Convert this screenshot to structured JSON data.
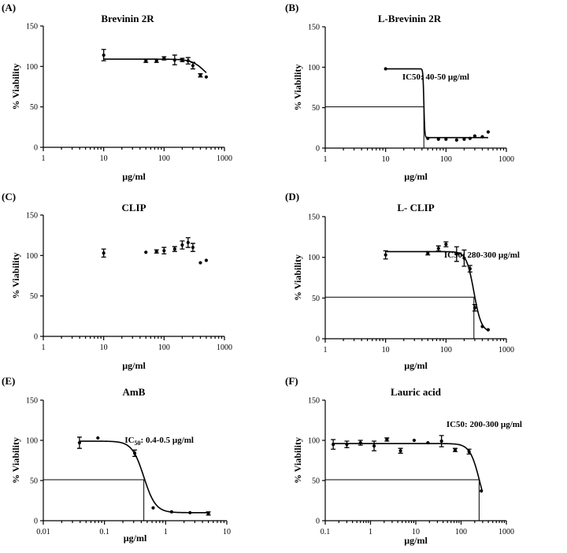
{
  "chart_data": [
    {
      "type": "scatter",
      "panel": "(A)",
      "title": "Brevinin 2R",
      "xlabel": "µg/ml",
      "ylabel": "% Viability",
      "xscale": "log",
      "xlim": [
        1,
        1000
      ],
      "ylim": [
        0,
        150
      ],
      "xticks": [
        1,
        10,
        100,
        1000
      ],
      "xtick_labels": [
        "1",
        "10",
        "100",
        "1000"
      ],
      "yticks": [
        0,
        50,
        100,
        150
      ],
      "points": [
        {
          "x": 10,
          "y": 114,
          "err": 7
        },
        {
          "x": 50,
          "y": 107,
          "err": 2
        },
        {
          "x": 75,
          "y": 107,
          "err": 2
        },
        {
          "x": 100,
          "y": 110,
          "err": 2
        },
        {
          "x": 150,
          "y": 108,
          "err": 6
        },
        {
          "x": 200,
          "y": 108,
          "err": 2
        },
        {
          "x": 250,
          "y": 107,
          "err": 4
        },
        {
          "x": 300,
          "y": 101,
          "err": 4
        },
        {
          "x": 400,
          "y": 89,
          "err": 2
        },
        {
          "x": 500,
          "y": 87,
          "err": 0
        }
      ],
      "curve": {
        "top": 109,
        "bottom": 78,
        "ic50": 480,
        "hill": 4
      },
      "annotation": ""
    },
    {
      "type": "scatter",
      "panel": "(B)",
      "title": "L-Brevinin 2R",
      "xlabel": "µg/ml",
      "ylabel": "% Viability",
      "xscale": "log",
      "xlim": [
        1,
        1000
      ],
      "ylim": [
        0,
        150
      ],
      "xticks": [
        1,
        10,
        100,
        1000
      ],
      "xtick_labels": [
        "1",
        "10",
        "100",
        "1000"
      ],
      "yticks": [
        0,
        50,
        100,
        150
      ],
      "points": [
        {
          "x": 10,
          "y": 98,
          "err": 0
        },
        {
          "x": 50,
          "y": 12,
          "err": 0
        },
        {
          "x": 75,
          "y": 11,
          "err": 0
        },
        {
          "x": 100,
          "y": 11,
          "err": 0
        },
        {
          "x": 150,
          "y": 10,
          "err": 0
        },
        {
          "x": 200,
          "y": 11,
          "err": 0
        },
        {
          "x": 250,
          "y": 12,
          "err": 0
        },
        {
          "x": 300,
          "y": 15,
          "err": 0
        },
        {
          "x": 400,
          "y": 14,
          "err": 0
        },
        {
          "x": 500,
          "y": 20,
          "err": 0
        }
      ],
      "curve": {
        "top": 98,
        "bottom": 13,
        "ic50": 43,
        "hill": 60
      },
      "guide": {
        "x": 43,
        "y": 51
      },
      "annotation": "IC50: 40-50 µg/ml"
    },
    {
      "type": "scatter",
      "panel": "(C)",
      "title": "CLIP",
      "xlabel": "µg/ml",
      "ylabel": "% Viability",
      "xscale": "log",
      "xlim": [
        1,
        1000
      ],
      "ylim": [
        0,
        150
      ],
      "xticks": [
        1,
        10,
        100,
        1000
      ],
      "xtick_labels": [
        "1",
        "10",
        "100",
        "1000"
      ],
      "yticks": [
        0,
        50,
        100,
        150
      ],
      "points": [
        {
          "x": 10,
          "y": 103,
          "err": 5
        },
        {
          "x": 50,
          "y": 104,
          "err": 0
        },
        {
          "x": 75,
          "y": 105,
          "err": 2
        },
        {
          "x": 100,
          "y": 106,
          "err": 4
        },
        {
          "x": 150,
          "y": 108,
          "err": 3
        },
        {
          "x": 200,
          "y": 113,
          "err": 5
        },
        {
          "x": 250,
          "y": 116,
          "err": 6
        },
        {
          "x": 300,
          "y": 110,
          "err": 5
        },
        {
          "x": 400,
          "y": 91,
          "err": 0
        },
        {
          "x": 500,
          "y": 94,
          "err": 0
        }
      ],
      "annotation": ""
    },
    {
      "type": "scatter",
      "panel": "(D)",
      "title": "L- CLIP",
      "xlabel": "µg/ml",
      "ylabel": "% Viability",
      "xscale": "log",
      "xlim": [
        1,
        1000
      ],
      "ylim": [
        0,
        150
      ],
      "xticks": [
        1,
        10,
        100,
        1000
      ],
      "xtick_labels": [
        "1",
        "10",
        "100",
        "1000"
      ],
      "yticks": [
        0,
        50,
        100,
        150
      ],
      "points": [
        {
          "x": 10,
          "y": 103,
          "err": 5
        },
        {
          "x": 50,
          "y": 105,
          "err": 2
        },
        {
          "x": 75,
          "y": 111,
          "err": 3
        },
        {
          "x": 100,
          "y": 116,
          "err": 3
        },
        {
          "x": 150,
          "y": 104,
          "err": 9
        },
        {
          "x": 200,
          "y": 99,
          "err": 10
        },
        {
          "x": 250,
          "y": 86,
          "err": 4
        },
        {
          "x": 300,
          "y": 38,
          "err": 4
        },
        {
          "x": 400,
          "y": 15,
          "err": 0
        },
        {
          "x": 500,
          "y": 11,
          "err": 0
        }
      ],
      "curve": {
        "top": 107,
        "bottom": 8,
        "ic50": 290,
        "hill": 7
      },
      "guide": {
        "x": 290,
        "y": 51
      },
      "annotation": "IC50: 280-300 µg/ml"
    },
    {
      "type": "scatter",
      "panel": "(E)",
      "title": "AmB",
      "xlabel": "µg/ml",
      "ylabel": "% Viability",
      "xscale": "log",
      "xlim": [
        0.01,
        10
      ],
      "ylim": [
        0,
        150
      ],
      "xticks": [
        0.01,
        0.1,
        1,
        10
      ],
      "xtick_labels": [
        "0.01",
        "0.1",
        "1",
        "10"
      ],
      "yticks": [
        0,
        50,
        100,
        150
      ],
      "points": [
        {
          "x": 0.039,
          "y": 97,
          "err": 7
        },
        {
          "x": 0.078,
          "y": 103,
          "err": 0
        },
        {
          "x": 0.312,
          "y": 84,
          "err": 4
        },
        {
          "x": 0.625,
          "y": 16,
          "err": 0
        },
        {
          "x": 1.25,
          "y": 11,
          "err": 0
        },
        {
          "x": 2.5,
          "y": 10,
          "err": 0
        },
        {
          "x": 5,
          "y": 9,
          "err": 2
        }
      ],
      "curve": {
        "top": 99,
        "bottom": 10,
        "ic50": 0.44,
        "hill": 4.5
      },
      "guide": {
        "x": 0.44,
        "y": 51
      },
      "annotation_main": "IC",
      "annotation_sub": "50",
      "annotation_rest": ": 0.4-0.5 µg/ml"
    },
    {
      "type": "scatter",
      "panel": "(F)",
      "title": "Lauric acid",
      "xlabel": "µg/ml",
      "ylabel": "% Viability",
      "xscale": "log",
      "xlim": [
        0.1,
        1000
      ],
      "ylim": [
        0,
        150
      ],
      "xticks": [
        0.1,
        1,
        10,
        100,
        1000
      ],
      "xtick_labels": [
        "0.1",
        "1",
        "10",
        "100",
        "1000"
      ],
      "yticks": [
        0,
        50,
        100,
        150
      ],
      "points": [
        {
          "x": 0.15,
          "y": 95,
          "err": 6
        },
        {
          "x": 0.3,
          "y": 95,
          "err": 4
        },
        {
          "x": 0.6,
          "y": 97,
          "err": 3
        },
        {
          "x": 1.2,
          "y": 93,
          "err": 6
        },
        {
          "x": 2.3,
          "y": 101,
          "err": 2
        },
        {
          "x": 4.6,
          "y": 87,
          "err": 3
        },
        {
          "x": 9.2,
          "y": 100,
          "err": 0
        },
        {
          "x": 18.5,
          "y": 97,
          "err": 0
        },
        {
          "x": 37,
          "y": 99,
          "err": 7
        },
        {
          "x": 74,
          "y": 88,
          "err": 2
        },
        {
          "x": 150,
          "y": 86,
          "err": 3
        },
        {
          "x": 280,
          "y": 37,
          "err": 0
        }
      ],
      "curve": {
        "top": 96,
        "bottom": 0,
        "ic50": 260,
        "hill": 4,
        "xmax": 290
      },
      "guide": {
        "x": 250,
        "y": 51
      },
      "annotation": "IC50: 200-300 µg/ml"
    }
  ]
}
